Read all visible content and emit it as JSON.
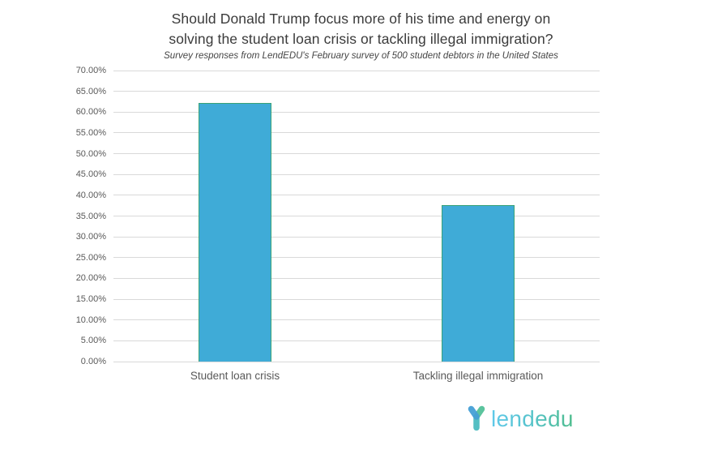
{
  "header": {
    "title_lines": [
      "Should Donald Trump focus more of his time and energy on",
      "solving the student loan crisis or tackling illegal immigration?"
    ],
    "subtitle": "Survey responses from LendEDU's February survey of 500 student debtors in the United States"
  },
  "chart_data": {
    "type": "bar",
    "title": "Should Donald Trump focus more of his time and energy on solving the student loan crisis or tackling illegal immigration?",
    "subtitle": "Survey responses from LendEDU's February survey of 500 student debtors in the United States",
    "categories": [
      "Student loan crisis",
      "Tackling illegal immigration"
    ],
    "values": [
      62.3,
      37.7
    ],
    "value_unit": "percent",
    "xlabel": "",
    "ylabel": "",
    "ylim": [
      0,
      70
    ],
    "ytick_step": 5,
    "ytick_labels": [
      "0.00%",
      "5.00%",
      "10.00%",
      "15.00%",
      "20.00%",
      "25.00%",
      "30.00%",
      "35.00%",
      "40.00%",
      "45.00%",
      "50.00%",
      "55.00%",
      "60.00%",
      "65.00%",
      "70.00%"
    ],
    "grid": "horizontal-only",
    "legend": "none",
    "bar_color": "#3fabd7",
    "bar_border_color": "#3aa377",
    "gridline_color": "#d9d9d9",
    "axis_label_color": "#595959"
  },
  "footer": {
    "logo_text": "lendedu",
    "logo_icon": "lendedu-y-icon",
    "logo_colors": {
      "arm_left_blue": "#459fd6",
      "arm_right_green": "#5bc49e",
      "leg_teal": "#55bfc3",
      "text_gradient_start": "#5fc9e9",
      "text_gradient_end": "#4fbd8d"
    }
  },
  "colors": {
    "background": "#ffffff",
    "title_text": "#3b3b3b",
    "subtitle_text": "#454545"
  }
}
